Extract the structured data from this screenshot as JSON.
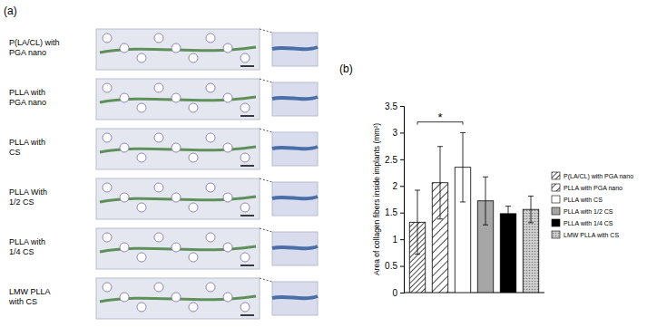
{
  "chart_data": {
    "type": "bar",
    "categories": [
      "P(LA/CL) with PGA nano",
      "PLLA with PGA nano",
      "PLLA with CS",
      "PLLA with 1/2 CS",
      "PLLA with 1/4 CS",
      "LMW PLLA with CS"
    ],
    "values": [
      1.32,
      2.06,
      2.35,
      1.72,
      1.48,
      1.56
    ],
    "errors": [
      0.6,
      0.68,
      0.65,
      0.45,
      0.14,
      0.25
    ],
    "colors": [
      "#000000",
      "#000000",
      "#ffffff",
      "#a6a6a6",
      "#000000",
      "#7f7f7f"
    ],
    "y_label": "Area of collagen fibers inside  implants (mm²)",
    "ylim": [
      0,
      3.5
    ],
    "yticks": [
      0,
      0.5,
      1,
      1.5,
      2,
      2.5,
      3,
      3.5
    ],
    "legend": "right",
    "tick_labels": "y",
    "annotations": [
      {
        "text": "*",
        "from": 0,
        "to": 2,
        "y": 3.2
      }
    ]
  },
  "panels": {
    "a": {
      "label": "(a)",
      "rows": [
        [
          "P(LA/CL) with",
          "PGA nano"
        ],
        [
          "PLLA with",
          "PGA nano"
        ],
        [
          "PLLA with",
          "CS"
        ],
        [
          "PLLA With",
          "1/2 CS"
        ],
        [
          "PLLA with",
          "1/4 CS"
        ],
        [
          "LMW PLLA",
          "with CS"
        ]
      ]
    },
    "b": {
      "label": "(b)"
    }
  }
}
